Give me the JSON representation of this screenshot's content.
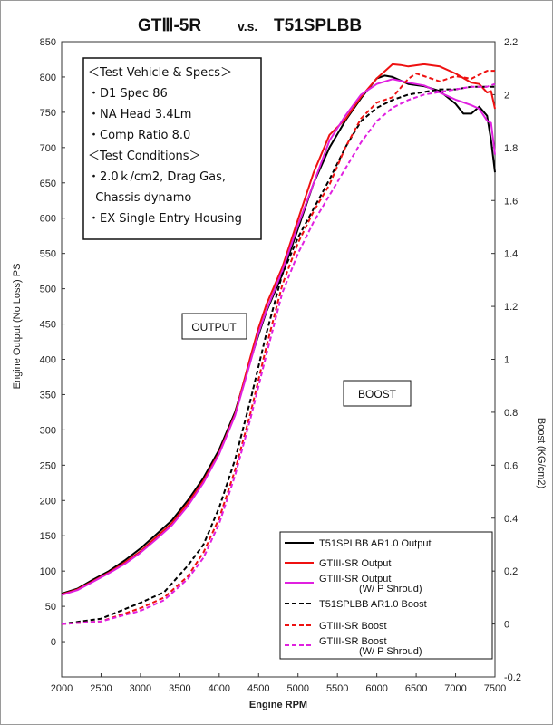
{
  "chart_data": {
    "type": "line",
    "title": "GTⅢ-5R v.s. T51SPLBB",
    "title_parts": [
      "GTⅢ-5R",
      "v.s.",
      "T51SPLBB"
    ],
    "xlabel": "Engine RPM",
    "ylabel_left": "Engine Output (No Loss) PS",
    "ylabel_right": "Boost (KG/cm2)",
    "xlim": [
      2000,
      7500
    ],
    "ylim_left": [
      -50,
      850
    ],
    "ylim_right": [
      -0.2,
      2.2
    ],
    "grid": false,
    "x_ticks": [
      "2000",
      "2500",
      "3000",
      "3500",
      "4000",
      "4500",
      "5000",
      "5500",
      "6000",
      "6500",
      "7000",
      "7500"
    ],
    "y_left_ticks": [
      "0",
      "50",
      "100",
      "150",
      "200",
      "250",
      "300",
      "350",
      "400",
      "450",
      "500",
      "550",
      "600",
      "650",
      "700",
      "750",
      "800",
      "850"
    ],
    "y_right_ticks": [
      "-0.2",
      "0",
      "0.2",
      "0.4",
      "0.6",
      "0.8",
      "1",
      "1.2",
      "1.4",
      "1.6",
      "1.8",
      "2",
      "2.2"
    ],
    "info_box": [
      "＜Test Vehicle & Specs＞",
      "・D1 Spec 86",
      "・NA Head 3.4Lm",
      "・Comp Ratio 8.0",
      "＜Test Conditions＞",
      "・2.0ｋ/cm2, Drag Gas,",
      "  Chassis dynamo",
      "・EX Single Entry Housing"
    ],
    "annotations": [
      "OUTPUT",
      "BOOST"
    ],
    "legend_position": "bottom-right",
    "series": [
      {
        "name": "T51SPLBB AR1.0 Output",
        "axis": "left",
        "color": "#000000",
        "dash": "solid",
        "x": [
          2000,
          2200,
          2400,
          2600,
          2800,
          3000,
          3200,
          3400,
          3600,
          3800,
          4000,
          4200,
          4400,
          4500,
          4600,
          4800,
          5000,
          5200,
          5400,
          5600,
          5800,
          6000,
          6100,
          6200,
          6300,
          6400,
          6600,
          6800,
          7000,
          7100,
          7200,
          7300,
          7400,
          7450,
          7500
        ],
        "y": [
          68,
          75,
          88,
          100,
          115,
          132,
          152,
          172,
          200,
          232,
          272,
          325,
          400,
          435,
          468,
          520,
          585,
          650,
          700,
          738,
          770,
          798,
          802,
          800,
          795,
          790,
          787,
          780,
          762,
          748,
          748,
          758,
          745,
          710,
          665
        ]
      },
      {
        "name": "GTIII-SR Output",
        "axis": "left",
        "color": "#ee1111",
        "dash": "solid",
        "x": [
          2000,
          2200,
          2400,
          2600,
          2800,
          3000,
          3200,
          3400,
          3600,
          3800,
          4000,
          4200,
          4400,
          4500,
          4600,
          4800,
          5000,
          5200,
          5400,
          5600,
          5800,
          6000,
          6200,
          6300,
          6400,
          6600,
          6800,
          7000,
          7200,
          7300,
          7400,
          7450,
          7500
        ],
        "y": [
          67,
          74,
          86,
          98,
          112,
          128,
          148,
          168,
          196,
          228,
          268,
          322,
          405,
          445,
          478,
          530,
          598,
          665,
          718,
          740,
          772,
          798,
          818,
          817,
          815,
          818,
          815,
          805,
          792,
          790,
          778,
          780,
          755
        ]
      },
      {
        "name": "GTIII-SR Output (W/ P Shroud)",
        "axis": "left",
        "color": "#e020e0",
        "dash": "solid",
        "x": [
          2000,
          2200,
          2400,
          2600,
          2800,
          3000,
          3200,
          3400,
          3600,
          3800,
          4000,
          4200,
          4400,
          4500,
          4600,
          4800,
          5000,
          5200,
          5400,
          5600,
          5800,
          6000,
          6200,
          6400,
          6600,
          6800,
          7000,
          7200,
          7300,
          7400,
          7450,
          7500
        ],
        "y": [
          66,
          73,
          85,
          97,
          110,
          126,
          145,
          165,
          192,
          225,
          266,
          320,
          398,
          438,
          470,
          525,
          590,
          650,
          710,
          745,
          775,
          790,
          797,
          792,
          788,
          778,
          768,
          760,
          755,
          738,
          735,
          690
        ]
      },
      {
        "name": "T51SPLBB AR1.0 Boost",
        "axis": "right",
        "color": "#000000",
        "dash": "5,3",
        "x": [
          2000,
          2500,
          3000,
          3300,
          3600,
          3800,
          4000,
          4200,
          4400,
          4600,
          4800,
          5000,
          5200,
          5400,
          5600,
          5800,
          6000,
          6200,
          6400,
          6600,
          6800,
          7000,
          7200,
          7400,
          7500
        ],
        "y": [
          0.0,
          0.02,
          0.08,
          0.12,
          0.22,
          0.3,
          0.44,
          0.62,
          0.85,
          1.1,
          1.32,
          1.46,
          1.57,
          1.68,
          1.8,
          1.9,
          1.95,
          1.98,
          2.0,
          2.01,
          2.02,
          2.02,
          2.03,
          2.03,
          2.03
        ]
      },
      {
        "name": "GTIII-SR Boost",
        "axis": "right",
        "color": "#ee1111",
        "dash": "5,3",
        "x": [
          2000,
          2500,
          3000,
          3300,
          3600,
          3800,
          4000,
          4200,
          4400,
          4600,
          4800,
          5000,
          5200,
          5400,
          5600,
          5800,
          6000,
          6200,
          6400,
          6500,
          6600,
          6800,
          7000,
          7200,
          7400,
          7500
        ],
        "y": [
          0.0,
          0.01,
          0.06,
          0.1,
          0.18,
          0.27,
          0.4,
          0.58,
          0.8,
          1.05,
          1.28,
          1.44,
          1.56,
          1.66,
          1.8,
          1.91,
          1.97,
          1.99,
          2.06,
          2.08,
          2.07,
          2.05,
          2.07,
          2.06,
          2.09,
          2.09
        ]
      },
      {
        "name": "GTIII-SR Boost (W/ P Shroud)",
        "axis": "right",
        "color": "#e020e0",
        "dash": "5,3",
        "x": [
          2000,
          2500,
          3000,
          3300,
          3600,
          3800,
          4000,
          4200,
          4400,
          4600,
          4800,
          5000,
          5200,
          5400,
          5600,
          5800,
          6000,
          6200,
          6400,
          6600,
          6800,
          7000,
          7200,
          7400,
          7500
        ],
        "y": [
          0.0,
          0.01,
          0.05,
          0.09,
          0.17,
          0.25,
          0.38,
          0.56,
          0.78,
          1.02,
          1.25,
          1.4,
          1.52,
          1.62,
          1.72,
          1.82,
          1.9,
          1.95,
          1.98,
          2.0,
          2.01,
          2.02,
          2.03,
          2.03,
          2.04
        ]
      }
    ],
    "legend": [
      {
        "label": "T51SPLBB AR1.0 Output",
        "sub": "",
        "color": "#000000",
        "dash": "solid"
      },
      {
        "label": "GTIII-SR Output",
        "sub": "",
        "color": "#ee1111",
        "dash": "solid"
      },
      {
        "label": "GTIII-SR Output",
        "sub": "(W/ P Shroud)",
        "color": "#e020e0",
        "dash": "solid"
      },
      {
        "label": "T51SPLBB AR1.0 Boost",
        "sub": "",
        "color": "#000000",
        "dash": "5,3"
      },
      {
        "label": "GTIII-SR Boost",
        "sub": "",
        "color": "#ee1111",
        "dash": "5,3"
      },
      {
        "label": "GTIII-SR Boost",
        "sub": "(W/ P Shroud)",
        "color": "#e020e0",
        "dash": "5,3"
      }
    ]
  }
}
